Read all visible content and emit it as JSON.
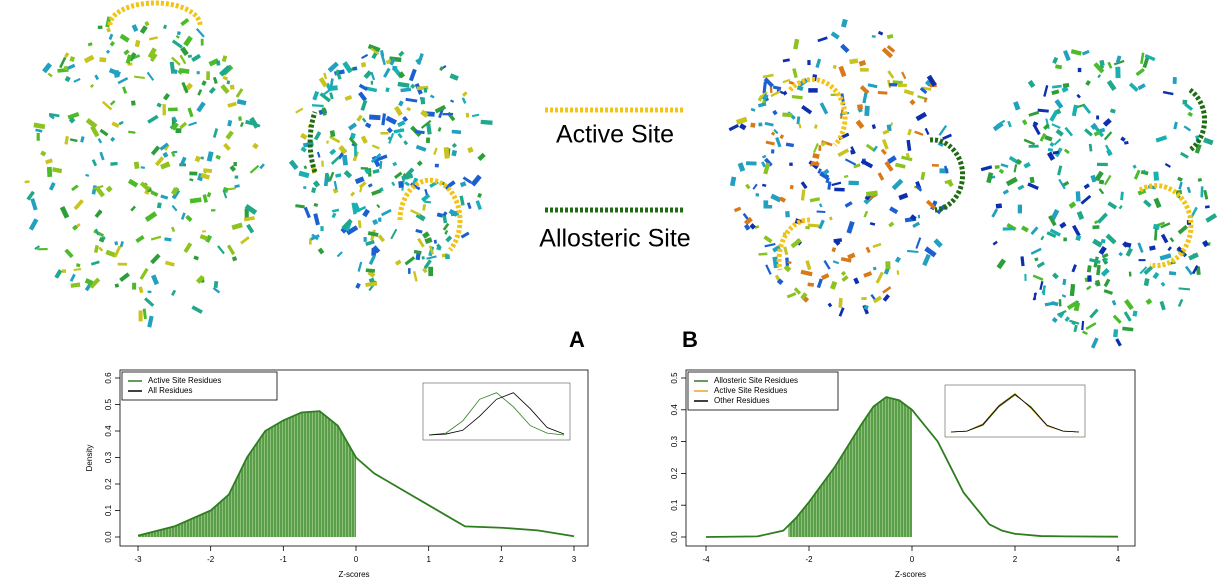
{
  "key": {
    "active_site": "Active Site",
    "allosteric_site": "Allosteric Site",
    "active_color": "#f2c418",
    "allosteric_color": "#1f6b12"
  },
  "panel_labels": [
    "A",
    "B"
  ],
  "chart_data": [
    {
      "type": "density",
      "xlabel": "Z-scores",
      "ylabel": "Density",
      "xlim": [
        -3,
        3
      ],
      "ylim": [
        0,
        0.6
      ],
      "xticks": [
        -3,
        -2,
        -1,
        0,
        1,
        2,
        3
      ],
      "yticks": [
        {
          "value": 0,
          "label": "0.0"
        },
        0.1,
        0.2,
        0.3,
        0.4,
        0.5,
        0.6
      ],
      "legend": [
        {
          "name": "Active Site Residues",
          "color": "#2e7d1f"
        },
        {
          "name": "All Residues",
          "color": "#000000"
        }
      ],
      "shaded_xlim": [
        -3,
        0
      ],
      "x": [
        -3,
        -2.5,
        -2,
        -1.75,
        -1.5,
        -1.25,
        -1,
        -0.75,
        -0.5,
        -0.25,
        0,
        0.25,
        0.5,
        0.75,
        1,
        1.25,
        1.5,
        2,
        2.5,
        3
      ],
      "series": [
        {
          "color": "#2e7d1f",
          "values": [
            0.005,
            0.04,
            0.1,
            0.16,
            0.3,
            0.4,
            0.44,
            0.47,
            0.475,
            0.42,
            0.3,
            0.24,
            0.2,
            0.16,
            0.12,
            0.08,
            0.04,
            0.035,
            0.025,
            0.003
          ]
        }
      ],
      "inset": {
        "x": [
          -4,
          -3,
          -2,
          -1,
          0,
          1,
          2,
          3,
          4
        ],
        "series": [
          {
            "color": "#2e7d1f",
            "values": [
              0,
              0.02,
              0.15,
              0.38,
              0.45,
              0.3,
              0.1,
              0.02,
              0
            ]
          },
          {
            "color": "#000000",
            "values": [
              0,
              0.01,
              0.05,
              0.2,
              0.38,
              0.45,
              0.28,
              0.08,
              0.01
            ]
          }
        ]
      }
    },
    {
      "type": "density",
      "xlabel": "Z-scores",
      "xlim": [
        -4,
        4
      ],
      "ylim": [
        0,
        0.5
      ],
      "xticks": [
        -4,
        -2,
        0,
        2,
        4
      ],
      "yticks": [
        {
          "value": 0,
          "label": "0.0"
        },
        0.1,
        0.2,
        0.3,
        0.4,
        0.5
      ],
      "legend": [
        {
          "name": "Allosteric Site Residues",
          "color": "#2e7d1f"
        },
        {
          "name": "Active Site Residues",
          "color": "#f0a030"
        },
        {
          "name": "Other Residues",
          "color": "#000000"
        }
      ],
      "shaded_xlim": [
        -2.4,
        0
      ],
      "x": [
        -4,
        -3,
        -2.5,
        -2.25,
        -2,
        -1.5,
        -1,
        -0.75,
        -0.5,
        -0.25,
        0,
        0.25,
        0.5,
        0.75,
        1,
        1.25,
        1.5,
        1.75,
        2,
        2.5,
        3,
        4
      ],
      "series": [
        {
          "color": "#2e7d1f",
          "values": [
            0,
            0.002,
            0.02,
            0.06,
            0.11,
            0.22,
            0.35,
            0.41,
            0.44,
            0.43,
            0.4,
            0.35,
            0.3,
            0.22,
            0.14,
            0.09,
            0.04,
            0.02,
            0.01,
            0.003,
            0.002,
            0.001
          ]
        }
      ],
      "inset": {
        "x": [
          -4,
          -3,
          -2,
          -1,
          0,
          1,
          2,
          3,
          4
        ],
        "series": [
          {
            "color": "#2e7d1f",
            "values": [
              0,
              0.01,
              0.08,
              0.3,
              0.44,
              0.3,
              0.08,
              0.01,
              0
            ]
          },
          {
            "color": "#f0a030",
            "values": [
              0,
              0.01,
              0.1,
              0.32,
              0.46,
              0.28,
              0.07,
              0.01,
              0
            ]
          },
          {
            "color": "#000000",
            "values": [
              0,
              0.01,
              0.09,
              0.31,
              0.45,
              0.29,
              0.08,
              0.01,
              0
            ]
          }
        ]
      }
    }
  ]
}
